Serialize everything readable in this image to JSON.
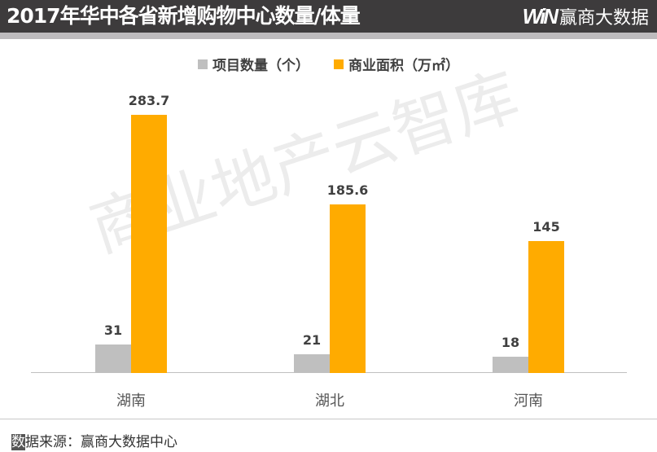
{
  "header": {
    "title": "2017年华中各省新增购物中心数量/体量",
    "brand_logo": "WiN",
    "brand_name": "赢商大数据"
  },
  "legend": [
    {
      "label": "项目数量（个）",
      "color": "#bfbfbf"
    },
    {
      "label": "商业面积（万㎡）",
      "color": "#ffab00"
    }
  ],
  "watermark": "商业地产云智库",
  "footer": {
    "source_first_char": "数",
    "source_rest": "据来源：赢商大数据中心"
  },
  "chart_data": {
    "type": "bar",
    "title": "2017年华中各省新增购物中心数量/体量",
    "categories": [
      "湖南",
      "湖北",
      "河南"
    ],
    "series": [
      {
        "name": "项目数量（个）",
        "color": "#bfbfbf",
        "values": [
          31,
          21,
          18
        ],
        "labels": [
          "31",
          "21",
          "18"
        ]
      },
      {
        "name": "商业面积（万㎡）",
        "color": "#ffab00",
        "values": [
          283.7,
          185.6,
          145
        ],
        "labels": [
          "283.7",
          "185.6",
          "145"
        ]
      }
    ],
    "xlabel": "",
    "ylabel": "",
    "ylim": [
      0,
      320
    ],
    "grid": false,
    "legend_position": "top",
    "data_labels": true
  }
}
